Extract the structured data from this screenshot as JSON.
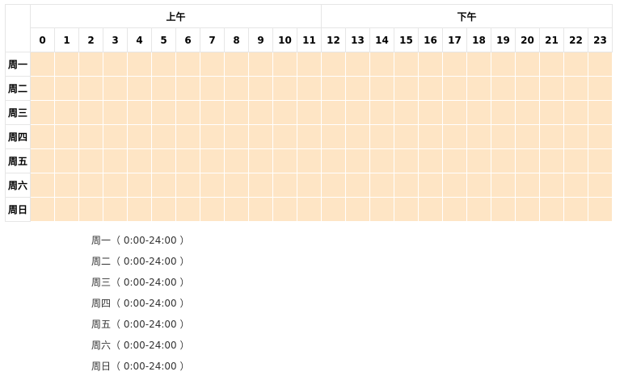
{
  "periods": [
    {
      "label": "上午"
    },
    {
      "label": "下午"
    }
  ],
  "hours": [
    "0",
    "1",
    "2",
    "3",
    "4",
    "5",
    "6",
    "7",
    "8",
    "9",
    "10",
    "11",
    "12",
    "13",
    "14",
    "15",
    "16",
    "17",
    "18",
    "19",
    "20",
    "21",
    "22",
    "23"
  ],
  "days": [
    "周一",
    "周二",
    "周三",
    "周四",
    "周五",
    "周六",
    "周日"
  ],
  "summary": [
    {
      "day": "周一",
      "range": "（ 0:00-24:00 ）"
    },
    {
      "day": "周二",
      "range": "（ 0:00-24:00 ）"
    },
    {
      "day": "周三",
      "range": "（ 0:00-24:00 ）"
    },
    {
      "day": "周四",
      "range": "（ 0:00-24:00 ）"
    },
    {
      "day": "周五",
      "range": "（ 0:00-24:00 ）"
    },
    {
      "day": "周六",
      "range": "（ 0:00-24:00 ）"
    },
    {
      "day": "周日",
      "range": "（ 0:00-24:00 ）"
    }
  ],
  "colors": {
    "selected_cell": "#fee5c5",
    "cell_border": "#ffffff",
    "grid_border": "#e6e6e6"
  }
}
